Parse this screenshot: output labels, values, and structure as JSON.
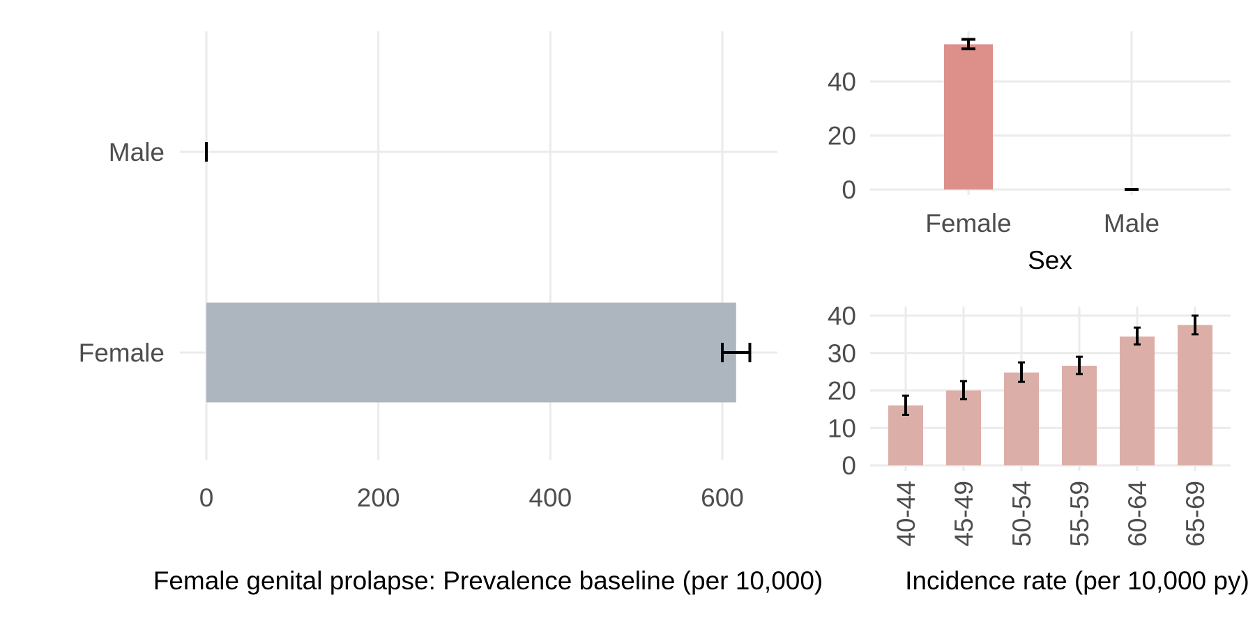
{
  "chart_data": [
    {
      "type": "bar",
      "orientation": "horizontal",
      "categories": [
        "Male",
        "Female"
      ],
      "values": [
        0,
        616
      ],
      "error_low": [
        0,
        600
      ],
      "error_high": [
        0,
        632
      ],
      "xlabel": "Female genital prolapse: Prevalence baseline (per 10,000)",
      "xlim": [
        0,
        660
      ],
      "xticks": [
        0,
        200,
        400,
        600
      ],
      "bar_color": "#adb5be",
      "grid": true
    },
    {
      "type": "bar",
      "categories": [
        "Female",
        "Male"
      ],
      "values": [
        53.8,
        0
      ],
      "error_low": [
        52.1,
        0
      ],
      "error_high": [
        55.6,
        0
      ],
      "xlabel": "Sex",
      "ylim": [
        0,
        58
      ],
      "yticks": [
        0,
        20,
        40
      ],
      "bar_color": "#dc9089",
      "grid": true
    },
    {
      "type": "bar",
      "categories": [
        "40-44",
        "45-49",
        "50-54",
        "55-59",
        "60-64",
        "65-69"
      ],
      "values": [
        16,
        20,
        24.8,
        26.6,
        34.4,
        37.5
      ],
      "error_low": [
        13.5,
        17.7,
        22.3,
        24.4,
        32.3,
        35.0
      ],
      "error_high": [
        18.6,
        22.5,
        27.5,
        29.0,
        36.8,
        40.0
      ],
      "xlabel": "Incidence rate (per 10,000 py)",
      "ylim": [
        0,
        41
      ],
      "yticks": [
        0,
        10,
        20,
        30,
        40
      ],
      "bar_color": "#dcaea8",
      "grid": true
    }
  ]
}
